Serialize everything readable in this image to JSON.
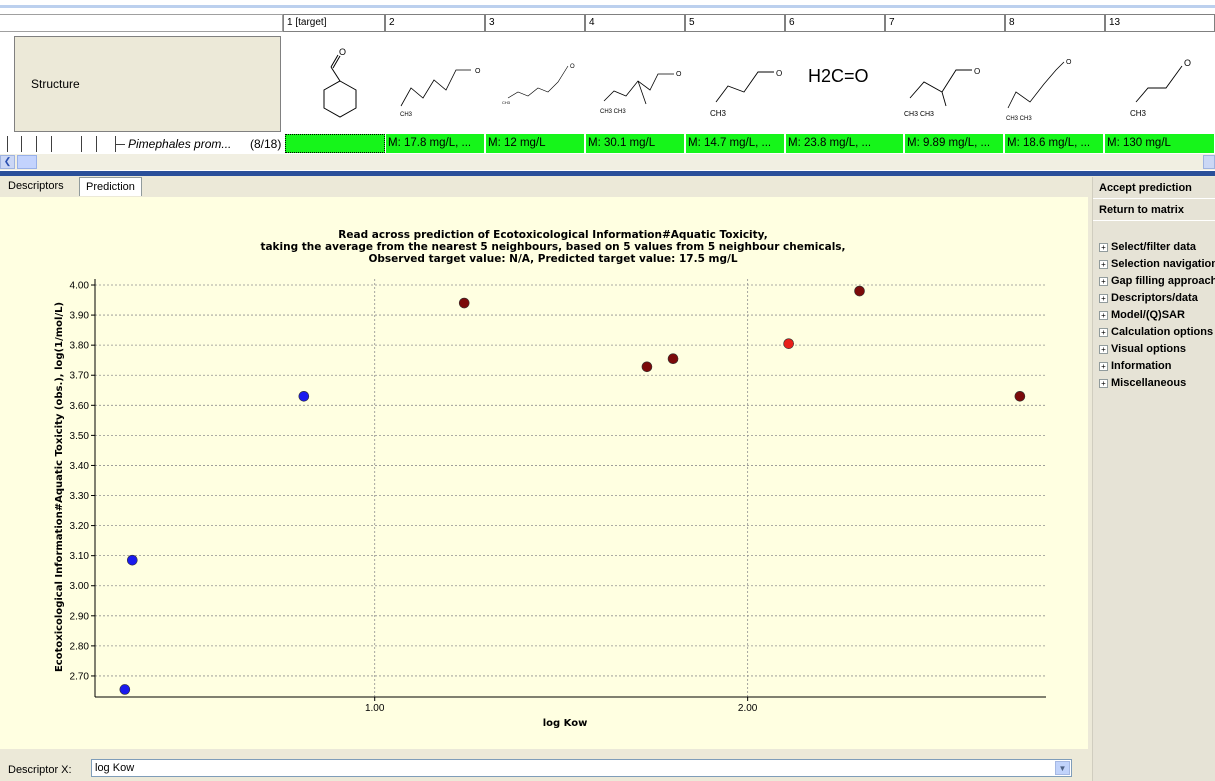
{
  "matrix": {
    "columns": [
      "1 [target]",
      "2",
      "3",
      "4",
      "5",
      "6",
      "7",
      "8",
      "13"
    ],
    "structure_label": "Structure",
    "structure_texts": [
      "",
      "CH3",
      "CH3",
      "CH3 CH3",
      "CH3",
      "H2C=O",
      "CH3 CH3",
      "CH3 CH3",
      "CH3"
    ],
    "species": "Pimephales prom...",
    "species_count": "(8/18)",
    "values": [
      "",
      "M: 17.8 mg/L, ...",
      "M: 12 mg/L",
      "M: 30.1 mg/L",
      "M: 14.7 mg/L, ...",
      "M: 23.8 mg/L, ...",
      "M: 9.89 mg/L, ...",
      "M: 18.6 mg/L, ...",
      "M: 130 mg/L"
    ]
  },
  "tabs": [
    "Descriptors",
    "Prediction"
  ],
  "active_tab": "Prediction",
  "right_panel": {
    "accept": "Accept prediction",
    "return": "Return to matrix",
    "sections": [
      "Select/filter data",
      "Selection navigation",
      "Gap filling approach",
      "Descriptors/data",
      "Model/(Q)SAR",
      "Calculation options",
      "Visual options",
      "Information",
      "Miscellaneous"
    ]
  },
  "descriptor_x": {
    "label": "Descriptor X:",
    "value": "log Kow"
  },
  "colors": {
    "blue": "#1a1aee",
    "darkred": "#7b0a0a",
    "red": "#e8201a",
    "green": "#16f51a",
    "plot_bg": "#ffffe1"
  },
  "chart_data": {
    "type": "scatter",
    "title_lines": [
      "Read across prediction of Ecotoxicological Information#Aquatic Toxicity,",
      "taking the average from the nearest 5 neighbours, based on 5 values from 5 neighbour chemicals,",
      "Observed target value: N/A, Predicted target value: 17.5 mg/L"
    ],
    "xlabel": "log Kow",
    "ylabel": "Ecotoxicological Information#Aquatic Toxicity (obs.), log(1/mol/L)",
    "xlim": [
      0.25,
      2.8
    ],
    "ylim": [
      2.63,
      4.02
    ],
    "xticks": [
      1.0,
      2.0
    ],
    "xtick_labels": [
      "1.00",
      "2.00"
    ],
    "yticks": [
      2.7,
      2.8,
      2.9,
      3.0,
      3.1,
      3.2,
      3.3,
      3.4,
      3.5,
      3.6,
      3.7,
      3.8,
      3.9,
      4.0
    ],
    "ytick_labels": [
      "2.70",
      "2.80",
      "2.90",
      "3.00",
      "3.10",
      "3.20",
      "3.30",
      "3.40",
      "3.50",
      "3.60",
      "3.70",
      "3.80",
      "3.90",
      "4.00"
    ],
    "grid": true,
    "points": [
      {
        "x": 0.33,
        "y": 2.655,
        "color": "blue"
      },
      {
        "x": 0.35,
        "y": 3.085,
        "color": "blue"
      },
      {
        "x": 0.81,
        "y": 3.63,
        "color": "blue"
      },
      {
        "x": 1.24,
        "y": 3.94,
        "color": "darkred"
      },
      {
        "x": 1.73,
        "y": 3.728,
        "color": "darkred"
      },
      {
        "x": 1.8,
        "y": 3.755,
        "color": "darkred"
      },
      {
        "x": 2.11,
        "y": 3.805,
        "color": "red"
      },
      {
        "x": 2.3,
        "y": 3.98,
        "color": "darkred"
      },
      {
        "x": 2.73,
        "y": 3.63,
        "color": "darkred"
      }
    ]
  }
}
